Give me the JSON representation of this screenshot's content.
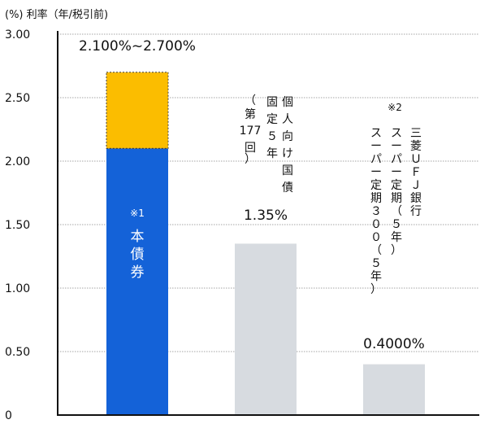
{
  "chart_data": {
    "type": "bar",
    "unit_label": "(%) 利率（年/税引前)",
    "ylim": [
      0,
      3.0
    ],
    "yticks": [
      "0",
      "0.50",
      "1.00",
      "1.50",
      "2.00",
      "2.50",
      "3.00"
    ],
    "ytick_values": [
      0,
      0.5,
      1.0,
      1.5,
      2.0,
      2.5,
      3.0
    ],
    "grid": true,
    "bars": [
      {
        "label": [
          "※1",
          "本",
          "債",
          "券"
        ],
        "value_low": 2.1,
        "value_high": 2.7,
        "value_text": "2.100%~2.700%",
        "color_base": "#1462d8",
        "color_range": "#fbbd00"
      },
      {
        "label_columns": [
          "個人向け国債",
          "固定５年",
          "（第177回）"
        ],
        "value": 1.35,
        "value_text": "1.35%",
        "color": "#d7dbe0"
      },
      {
        "note": "※2",
        "label_columns": [
          "三菱ＵＦＪ銀行",
          "スーパー定期（５年）",
          "スーパー定期３００（５年）"
        ],
        "value": 0.4,
        "value_text": "0.4000%",
        "color": "#d7dbe0"
      }
    ]
  }
}
